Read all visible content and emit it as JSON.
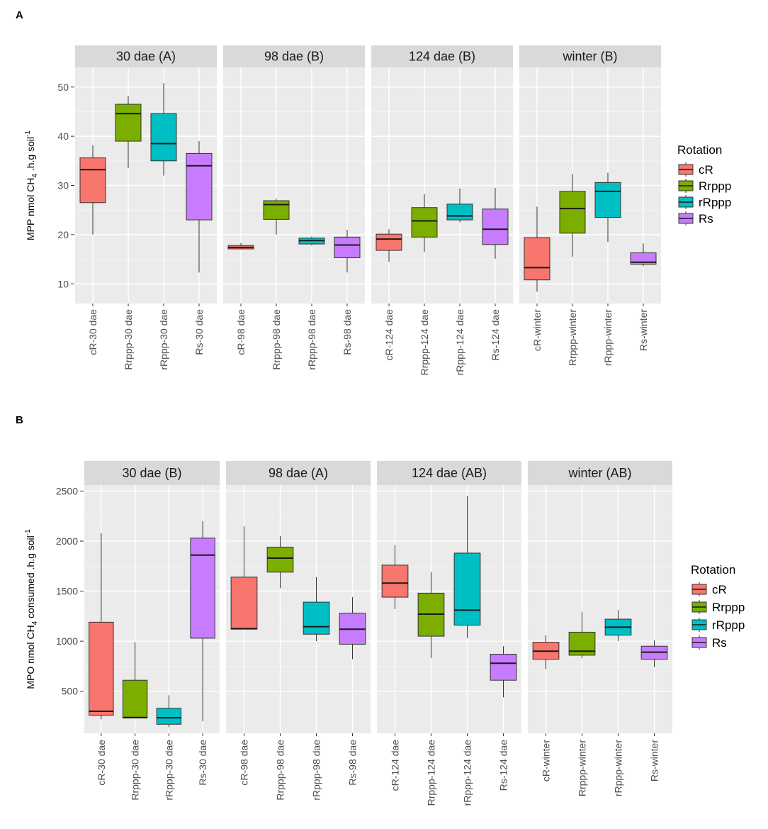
{
  "series_colors": {
    "cR": "#F8766D",
    "Rrppp": "#7CAE00",
    "rRppp": "#00BFC4",
    "Rs": "#C77CFF"
  },
  "chart_data": [
    {
      "id": "A",
      "type": "box",
      "panel_label": "A",
      "ylabel": "MPP  nmol CH",
      "ylabel_sub": "4",
      "ylabel_rest": " .h.g soil",
      "ylabel_sup": "-1",
      "ylim": [
        6,
        54
      ],
      "yticks": [
        10,
        20,
        30,
        40,
        50
      ],
      "legend_title": "Rotation",
      "legend": [
        "cR",
        "Rrppp",
        "rRppp",
        "Rs"
      ],
      "facets": [
        {
          "strip": "30 dae (A)",
          "boxes": [
            {
              "series": "cR",
              "label": "cR-30 dae",
              "min": 20,
              "q1": 26.5,
              "median": 33.2,
              "q3": 35.6,
              "max": 38.2
            },
            {
              "series": "Rrppp",
              "label": "Rrppp-30 dae",
              "min": 33.5,
              "q1": 39,
              "median": 44.6,
              "q3": 46.5,
              "max": 48.2
            },
            {
              "series": "rRppp",
              "label": "rRppp-30 dae",
              "min": 32,
              "q1": 35,
              "median": 38.5,
              "q3": 44.6,
              "max": 50.8
            },
            {
              "series": "Rs",
              "label": "Rs-30 dae",
              "min": 12.3,
              "q1": 23,
              "median": 34,
              "q3": 36.5,
              "max": 39
            }
          ]
        },
        {
          "strip": "98 dae (B)",
          "boxes": [
            {
              "series": "cR",
              "label": "cR-98 dae",
              "min": 17,
              "q1": 17.1,
              "median": 17.4,
              "q3": 17.8,
              "max": 18.3
            },
            {
              "series": "Rrppp",
              "label": "Rrppp-98 dae",
              "min": 20,
              "q1": 23.1,
              "median": 26.1,
              "q3": 26.9,
              "max": 27.3
            },
            {
              "series": "rRppp",
              "label": "rRppp-98 dae",
              "min": 17.8,
              "q1": 18.1,
              "median": 18.8,
              "q3": 19.3,
              "max": 19.6
            },
            {
              "series": "Rs",
              "label": "Rs-98 dae",
              "min": 12.3,
              "q1": 15.3,
              "median": 17.9,
              "q3": 19.5,
              "max": 21
            }
          ]
        },
        {
          "strip": "124 dae (B)",
          "boxes": [
            {
              "series": "cR",
              "label": "cR-124 dae",
              "min": 14.5,
              "q1": 16.8,
              "median": 19.1,
              "q3": 20.1,
              "max": 21.1
            },
            {
              "series": "Rrppp",
              "label": "Rrppp-124 dae",
              "min": 16.5,
              "q1": 19.5,
              "median": 22.8,
              "q3": 25.5,
              "max": 28.2
            },
            {
              "series": "rRppp",
              "label": "rRppp-124 dae",
              "min": 22.5,
              "q1": 23,
              "median": 23.8,
              "q3": 26.2,
              "max": 29.4
            },
            {
              "series": "Rs",
              "label": "Rs-124 dae",
              "min": 15.1,
              "q1": 18,
              "median": 21.1,
              "q3": 25.2,
              "max": 29.5
            }
          ]
        },
        {
          "strip": "winter (B)",
          "boxes": [
            {
              "series": "cR",
              "label": "cR-winter",
              "min": 8.4,
              "q1": 10.8,
              "median": 13.3,
              "q3": 19.4,
              "max": 25.7
            },
            {
              "series": "Rrppp",
              "label": "Rrppp-winter",
              "min": 15.5,
              "q1": 20.3,
              "median": 25.3,
              "q3": 28.8,
              "max": 32.3
            },
            {
              "series": "rRppp",
              "label": "rRppp-winter",
              "min": 18.5,
              "q1": 23.5,
              "median": 28.8,
              "q3": 30.6,
              "max": 32.6
            },
            {
              "series": "Rs",
              "label": "Rs-winter",
              "min": 13.6,
              "q1": 14,
              "median": 14.4,
              "q3": 16.3,
              "max": 18.2
            }
          ]
        }
      ]
    },
    {
      "id": "B",
      "type": "box",
      "panel_label": "B",
      "ylabel": "MPO  nmol CH",
      "ylabel_sub": "4",
      "ylabel_rest": " consumed .h.g soil",
      "ylabel_sup": "-1",
      "ylim": [
        80,
        2560
      ],
      "yticks": [
        500,
        1000,
        1500,
        2000,
        2500
      ],
      "legend_title": "Rotation",
      "legend": [
        "cR",
        "Rrppp",
        "rRppp",
        "Rs"
      ],
      "facets": [
        {
          "strip": "30 dae (B)",
          "boxes": [
            {
              "series": "cR",
              "label": "cR-30 dae",
              "min": 220,
              "q1": 260,
              "median": 300,
              "q3": 1190,
              "max": 2080
            },
            {
              "series": "Rrppp",
              "label": "Rrppp-30 dae",
              "min": 230,
              "q1": 232,
              "median": 238,
              "q3": 610,
              "max": 990
            },
            {
              "series": "rRppp",
              "label": "rRppp-30 dae",
              "min": 140,
              "q1": 170,
              "median": 235,
              "q3": 330,
              "max": 460
            },
            {
              "series": "Rs",
              "label": "Rs-30 dae",
              "min": 200,
              "q1": 1030,
              "median": 1860,
              "q3": 2030,
              "max": 2200
            }
          ]
        },
        {
          "strip": "98 dae (A)",
          "boxes": [
            {
              "series": "cR",
              "label": "cR-98 dae",
              "min": 1120,
              "q1": 1120,
              "median": 1125,
              "q3": 1640,
              "max": 2150
            },
            {
              "series": "Rrppp",
              "label": "Rrppp-98 dae",
              "min": 1530,
              "q1": 1690,
              "median": 1830,
              "q3": 1940,
              "max": 2050
            },
            {
              "series": "rRppp",
              "label": "rRppp-98 dae",
              "min": 1000,
              "q1": 1070,
              "median": 1145,
              "q3": 1390,
              "max": 1640
            },
            {
              "series": "Rs",
              "label": "Rs-98 dae",
              "min": 820,
              "q1": 970,
              "median": 1120,
              "q3": 1280,
              "max": 1440
            }
          ]
        },
        {
          "strip": "124 dae (AB)",
          "boxes": [
            {
              "series": "cR",
              "label": "cR-124 dae",
              "min": 1320,
              "q1": 1440,
              "median": 1580,
              "q3": 1760,
              "max": 1960
            },
            {
              "series": "Rrppp",
              "label": "Rrppp-124 dae",
              "min": 830,
              "q1": 1050,
              "median": 1270,
              "q3": 1480,
              "max": 1690
            },
            {
              "series": "rRppp",
              "label": "rRppp-124 dae",
              "min": 1030,
              "q1": 1160,
              "median": 1310,
              "q3": 1880,
              "max": 2450
            },
            {
              "series": "Rs",
              "label": "Rs-124 dae",
              "min": 440,
              "q1": 610,
              "median": 780,
              "q3": 870,
              "max": 950
            }
          ]
        },
        {
          "strip": "winter (AB)",
          "boxes": [
            {
              "series": "cR",
              "label": "cR-winter",
              "min": 720,
              "q1": 820,
              "median": 900,
              "q3": 990,
              "max": 1060
            },
            {
              "series": "Rrppp",
              "label": "Rrppp-winter",
              "min": 830,
              "q1": 860,
              "median": 900,
              "q3": 1090,
              "max": 1290
            },
            {
              "series": "rRppp",
              "label": "rRppp-winter",
              "min": 1000,
              "q1": 1060,
              "median": 1140,
              "q3": 1220,
              "max": 1310
            },
            {
              "series": "Rs",
              "label": "Rs-winter",
              "min": 740,
              "q1": 820,
              "median": 890,
              "q3": 950,
              "max": 1010
            }
          ]
        }
      ]
    }
  ]
}
